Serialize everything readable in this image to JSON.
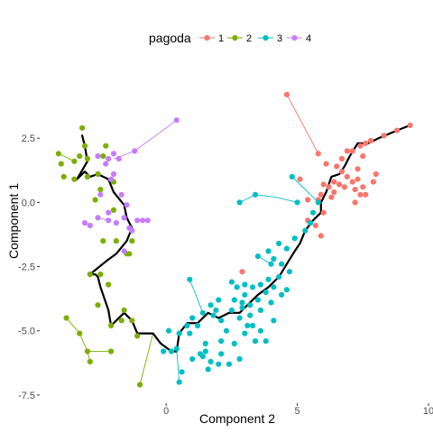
{
  "chart_data": {
    "type": "scatter",
    "xlabel": "Component 2",
    "ylabel": "Component 1",
    "xlim": [
      -4.75,
      10.0
    ],
    "ylim": [
      -7.75,
      5.0
    ],
    "x_ticks": [
      {
        "value": 0,
        "label": "0"
      },
      {
        "value": 5,
        "label": "5"
      },
      {
        "value": 10,
        "label": "10"
      }
    ],
    "y_ticks": [
      {
        "value": 2.5,
        "label": "2.5"
      },
      {
        "value": 0,
        "label": "0.0"
      },
      {
        "value": -2.5,
        "label": "-2.5"
      },
      {
        "value": -5,
        "label": "-5.0"
      },
      {
        "value": -7.5,
        "label": "-7.5"
      }
    ],
    "grid": false,
    "legend": {
      "title": "pagoda",
      "position": "top",
      "entries": [
        {
          "label": "1",
          "color": "#F8766D"
        },
        {
          "label": "2",
          "color": "#7CAE00"
        },
        {
          "label": "3",
          "color": "#00BFC4"
        },
        {
          "label": "4",
          "color": "#C77CFF"
        }
      ]
    },
    "trajectory": [
      [
        9.3,
        3.0
      ],
      [
        8.8,
        2.8
      ],
      [
        8.1,
        2.5
      ],
      [
        7.7,
        2.3
      ],
      [
        7.3,
        2.3
      ],
      [
        7.0,
        1.8
      ],
      [
        6.8,
        1.4
      ],
      [
        6.6,
        1.1
      ],
      [
        6.3,
        1.0
      ],
      [
        6.1,
        0.4
      ],
      [
        5.9,
        0.0
      ],
      [
        5.9,
        -0.4
      ],
      [
        5.6,
        -0.7
      ],
      [
        5.3,
        -1.1
      ],
      [
        5.1,
        -1.6
      ],
      [
        4.9,
        -1.9
      ],
      [
        4.6,
        -2.4
      ],
      [
        4.3,
        -2.9
      ],
      [
        3.9,
        -3.3
      ],
      [
        3.5,
        -3.6
      ],
      [
        3.1,
        -4.0
      ],
      [
        2.8,
        -4.3
      ],
      [
        2.4,
        -4.3
      ],
      [
        2.0,
        -4.5
      ],
      [
        1.6,
        -4.3
      ],
      [
        1.2,
        -4.7
      ],
      [
        0.8,
        -4.7
      ],
      [
        0.5,
        -5.1
      ],
      [
        0.4,
        -5.8
      ],
      [
        0.2,
        -5.8
      ],
      [
        -0.2,
        -5.5
      ],
      [
        -0.5,
        -5.1
      ],
      [
        -1.1,
        -5.1
      ],
      [
        -1.3,
        -4.6
      ],
      [
        -1.6,
        -4.3
      ],
      [
        -1.9,
        -4.6
      ],
      [
        -2.1,
        -4.8
      ],
      [
        -2.2,
        -4.2
      ],
      [
        -2.5,
        -3.3
      ],
      [
        -2.6,
        -2.9
      ],
      [
        -2.7,
        -2.8
      ],
      [
        -2.9,
        -2.8
      ],
      [
        -2.3,
        -2.3
      ],
      [
        -1.9,
        -2.0
      ],
      [
        -1.5,
        -1.5
      ],
      [
        -1.3,
        -1.0
      ],
      [
        -1.5,
        -0.6
      ],
      [
        -1.6,
        -0.1
      ],
      [
        -2.0,
        0.4
      ],
      [
        -2.2,
        0.9
      ],
      [
        -2.6,
        1.1
      ],
      [
        -2.9,
        1.0
      ],
      [
        -3.1,
        1.2
      ],
      [
        -3.4,
        0.9
      ],
      [
        -3.0,
        1.6
      ],
      [
        -3.1,
        2.2
      ],
      [
        -3.2,
        2.6
      ]
    ],
    "series": [
      {
        "name": "1",
        "color": "#F8766D",
        "points": [
          [
            4.6,
            4.2
          ],
          [
            5.8,
            1.9
          ],
          [
            6.1,
            1.5
          ],
          [
            6.5,
            1.4
          ],
          [
            6.7,
            1.2
          ],
          [
            6.9,
            1.0
          ],
          [
            7.1,
            0.8
          ],
          [
            7.3,
            0.9
          ],
          [
            7.5,
            0.6
          ],
          [
            7.6,
            0.3
          ],
          [
            7.4,
            0.3
          ],
          [
            7.2,
            0.5
          ],
          [
            6.8,
            0.6
          ],
          [
            6.6,
            0.7
          ],
          [
            6.4,
            0.4
          ],
          [
            6.3,
            0.2
          ],
          [
            6.2,
            0.6
          ],
          [
            6.0,
            0.7
          ],
          [
            5.9,
            0.3
          ],
          [
            6.4,
            0.8
          ],
          [
            6.7,
            1.7
          ],
          [
            7.1,
            2.0
          ],
          [
            7.5,
            1.8
          ],
          [
            7.9,
            0.8
          ],
          [
            8.0,
            1.1
          ],
          [
            7.8,
            2.4
          ],
          [
            7.6,
            2.3
          ],
          [
            7.4,
            2.2
          ],
          [
            8.3,
            2.6
          ],
          [
            8.8,
            2.8
          ],
          [
            9.3,
            3.0
          ],
          [
            7.2,
            0.0
          ],
          [
            5.8,
            0.1
          ],
          [
            5.4,
            0.1
          ],
          [
            5.7,
            -0.9
          ],
          [
            5.9,
            -1.3
          ],
          [
            5.4,
            -0.7
          ],
          [
            6.0,
            -0.4
          ],
          [
            2.9,
            -2.7
          ],
          [
            5.1,
            0.9
          ],
          [
            6.9,
            2.0
          ],
          [
            7.3,
            1.3
          ]
        ],
        "links": [
          [
            [
              4.6,
              4.2
            ],
            [
              5.8,
              1.9
            ]
          ]
        ]
      },
      {
        "name": "2",
        "color": "#7CAE00",
        "points": [
          [
            -3.2,
            2.9
          ],
          [
            -3.1,
            2.2
          ],
          [
            -3.0,
            1.7
          ],
          [
            -3.3,
            1.8
          ],
          [
            -3.5,
            1.6
          ],
          [
            -4.1,
            1.9
          ],
          [
            -4.0,
            1.5
          ],
          [
            -3.9,
            1.0
          ],
          [
            -3.5,
            0.9
          ],
          [
            -3.0,
            1.0
          ],
          [
            -2.6,
            1.1
          ],
          [
            -2.4,
            1.8
          ],
          [
            -2.3,
            2.2
          ],
          [
            -2.0,
            0.8
          ],
          [
            -2.5,
            0.5
          ],
          [
            -2.7,
            0.1
          ],
          [
            -2.0,
            -0.3
          ],
          [
            -1.9,
            -1.5
          ],
          [
            -2.4,
            -1.5
          ],
          [
            -1.3,
            -1.5
          ],
          [
            -1.4,
            -2.0
          ],
          [
            -1.5,
            -2.0
          ],
          [
            -2.5,
            -2.8
          ],
          [
            -2.9,
            -2.8
          ],
          [
            -2.2,
            -3.2
          ],
          [
            -2.6,
            -4.0
          ],
          [
            -2.1,
            -4.8
          ],
          [
            -1.6,
            -4.2
          ],
          [
            -1.1,
            -5.2
          ],
          [
            -1.3,
            -4.6
          ],
          [
            -3.8,
            -4.5
          ],
          [
            -3.3,
            -5.1
          ],
          [
            -3.0,
            -5.8
          ],
          [
            -2.9,
            -6.2
          ],
          [
            -2.1,
            -5.8
          ],
          [
            -1.0,
            -7.1
          ],
          [
            -1.7,
            -4.6
          ]
        ],
        "links": [
          [
            [
              -3.8,
              -4.5
            ],
            [
              -3.3,
              -5.1
            ]
          ],
          [
            [
              -3.3,
              -5.1
            ],
            [
              -3.0,
              -5.8
            ]
          ],
          [
            [
              -3.0,
              -5.8
            ],
            [
              -2.1,
              -5.8
            ]
          ],
          [
            [
              -3.0,
              -5.8
            ],
            [
              -2.9,
              -6.2
            ]
          ],
          [
            [
              -1.0,
              -7.1
            ],
            [
              -0.5,
              -5.1
            ]
          ],
          [
            [
              -3.5,
              1.6
            ],
            [
              -4.1,
              1.9
            ]
          ],
          [
            [
              -2.4,
              2.2
            ],
            [
              -2.3,
              2.2
            ]
          ]
        ]
      },
      {
        "name": "3",
        "color": "#00BFC4",
        "points": [
          [
            5.0,
            0.0
          ],
          [
            2.8,
            0.0
          ],
          [
            3.4,
            0.3
          ],
          [
            4.8,
            1.0
          ],
          [
            5.8,
            0.0
          ],
          [
            5.6,
            -0.4
          ],
          [
            5.5,
            -0.8
          ],
          [
            5.3,
            -1.1
          ],
          [
            4.9,
            -1.4
          ],
          [
            4.6,
            -1.8
          ],
          [
            4.3,
            -1.6
          ],
          [
            3.9,
            -1.9
          ],
          [
            4.1,
            -2.2
          ],
          [
            4.4,
            -2.4
          ],
          [
            4.7,
            -2.7
          ],
          [
            4.3,
            -2.9
          ],
          [
            3.9,
            -3.0
          ],
          [
            3.6,
            -3.2
          ],
          [
            3.3,
            -3.3
          ],
          [
            3.0,
            -3.6
          ],
          [
            2.9,
            -3.9
          ],
          [
            3.2,
            -4.0
          ],
          [
            3.5,
            -3.8
          ],
          [
            3.8,
            -3.5
          ],
          [
            4.1,
            -3.3
          ],
          [
            4.4,
            -3.6
          ],
          [
            4.0,
            -3.9
          ],
          [
            3.6,
            -4.2
          ],
          [
            3.2,
            -4.4
          ],
          [
            2.8,
            -4.5
          ],
          [
            2.5,
            -4.2
          ],
          [
            2.1,
            -4.6
          ],
          [
            1.8,
            -4.4
          ],
          [
            1.4,
            -4.3
          ],
          [
            1.0,
            -4.5
          ],
          [
            0.8,
            -4.8
          ],
          [
            0.5,
            -5.1
          ],
          [
            0.4,
            -5.7
          ],
          [
            0.2,
            -5.8
          ],
          [
            1.2,
            -4.8
          ],
          [
            1.5,
            -5.5
          ],
          [
            1.3,
            -5.9
          ],
          [
            1.4,
            -6.0
          ],
          [
            1.7,
            -6.2
          ],
          [
            2.0,
            -6.3
          ],
          [
            2.4,
            -6.3
          ],
          [
            2.8,
            -6.1
          ],
          [
            2.6,
            -5.5
          ],
          [
            2.1,
            -5.4
          ],
          [
            2.3,
            -5.0
          ],
          [
            3.0,
            -5.1
          ],
          [
            3.3,
            -4.8
          ],
          [
            3.6,
            -5.0
          ],
          [
            3.8,
            -5.4
          ],
          [
            1.0,
            -6.1
          ],
          [
            0.6,
            -6.6
          ],
          [
            0.5,
            -7.0
          ],
          [
            0.9,
            -3.0
          ],
          [
            2.5,
            -3.1
          ],
          [
            2.7,
            -3.3
          ],
          [
            3.0,
            -3.2
          ],
          [
            3.5,
            -2.1
          ],
          [
            4.0,
            -2.4
          ],
          [
            4.6,
            -3.4
          ],
          [
            4.1,
            -4.6
          ],
          [
            2.0,
            -3.8
          ],
          [
            1.7,
            -4.0
          ],
          [
            1.6,
            -6.5
          ],
          [
            1.5,
            -5.8
          ],
          [
            2.1,
            -5.9
          ],
          [
            3.1,
            -4.8
          ],
          [
            3.4,
            -5.4
          ],
          [
            2.9,
            -4.1
          ],
          [
            0.9,
            -5.1
          ],
          [
            1.9,
            -4.2
          ],
          [
            0.1,
            -5.0
          ],
          [
            -0.1,
            -5.8
          ],
          [
            2.6,
            -3.8
          ]
        ],
        "links": [
          [
            [
              5.0,
              0.0
            ],
            [
              4.2,
              0.2
            ]
          ],
          [
            [
              4.2,
              0.2
            ],
            [
              3.4,
              0.3
            ]
          ],
          [
            [
              3.4,
              0.3
            ],
            [
              2.8,
              0.0
            ]
          ],
          [
            [
              4.8,
              1.0
            ],
            [
              5.8,
              0.0
            ]
          ],
          [
            [
              3.5,
              -2.1
            ],
            [
              4.0,
              -2.4
            ]
          ],
          [
            [
              0.9,
              -3.0
            ],
            [
              1.4,
              -4.3
            ]
          ],
          [
            [
              0.5,
              -7.0
            ],
            [
              0.4,
              -5.7
            ]
          ]
        ]
      },
      {
        "name": "4",
        "color": "#C77CFF",
        "points": [
          [
            0.4,
            3.2
          ],
          [
            -1.2,
            2.0
          ],
          [
            -1.8,
            1.7
          ],
          [
            -2.0,
            1.9
          ],
          [
            -2.2,
            1.7
          ],
          [
            -2.6,
            1.8
          ],
          [
            -2.3,
            1.5
          ],
          [
            -2.1,
            0.9
          ],
          [
            -1.7,
            0.3
          ],
          [
            -1.5,
            -0.1
          ],
          [
            -1.6,
            -0.6
          ],
          [
            -1.1,
            -0.7
          ],
          [
            -0.9,
            -0.7
          ],
          [
            -0.7,
            -0.7
          ],
          [
            -1.9,
            -0.8
          ],
          [
            -2.2,
            -0.7
          ],
          [
            -2.6,
            -0.6
          ],
          [
            -2.9,
            -0.9
          ],
          [
            -3.1,
            -0.8
          ],
          [
            -1.3,
            -1.1
          ],
          [
            -1.4,
            -1.0
          ],
          [
            -2.2,
            -0.4
          ],
          [
            -2.5,
            0.3
          ],
          [
            -1.6,
            -1.9
          ],
          [
            -2.0,
            1.1
          ]
        ],
        "links": [
          [
            [
              0.4,
              3.2
            ],
            [
              -1.2,
              2.0
            ]
          ],
          [
            [
              -1.2,
              2.0
            ],
            [
              -2.0,
              1.7
            ]
          ],
          [
            [
              -2.9,
              -0.9
            ],
            [
              -3.1,
              -0.8
            ]
          ],
          [
            [
              -2.2,
              -0.7
            ],
            [
              -2.6,
              -0.6
            ]
          ]
        ]
      }
    ]
  }
}
